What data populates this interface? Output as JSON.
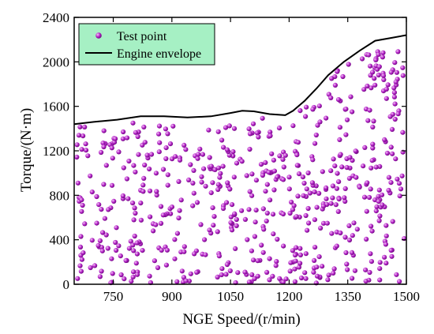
{
  "chart_data": {
    "type": "scatter",
    "xlabel": "NGE Speed/(r/min)",
    "ylabel": "Torque/(N·m)",
    "xlim": [
      650,
      1500
    ],
    "ylim": [
      0,
      2400
    ],
    "x_ticks": [
      750,
      900,
      1050,
      1200,
      1350,
      1500
    ],
    "y_ticks": [
      0,
      400,
      800,
      1200,
      1600,
      2000,
      2400
    ],
    "grid": false,
    "legend_placement": "top-left",
    "legend": {
      "points_label": "Test point",
      "envelope_label": "Engine envelope"
    },
    "colors": {
      "point": "#b01fc4",
      "point_highlight": "#f2b6f6",
      "envelope": "#000000",
      "legend_bg": "#a6f0c4"
    },
    "series": [
      {
        "name": "Engine envelope",
        "kind": "line",
        "x": [
          650,
          700,
          760,
          820,
          880,
          940,
          1000,
          1050,
          1080,
          1110,
          1150,
          1190,
          1210,
          1240,
          1270,
          1300,
          1340,
          1380,
          1420,
          1460,
          1500
        ],
        "y": [
          1440,
          1460,
          1480,
          1510,
          1510,
          1500,
          1510,
          1540,
          1560,
          1555,
          1530,
          1520,
          1560,
          1650,
          1760,
          1880,
          2000,
          2100,
          2190,
          2215,
          2240
        ]
      },
      {
        "name": "Test point",
        "kind": "scatter",
        "sampling": "dense quasi-random sampling of the region below the engine envelope (approx. 650 points)",
        "count": 650,
        "seed": 12345
      }
    ]
  }
}
